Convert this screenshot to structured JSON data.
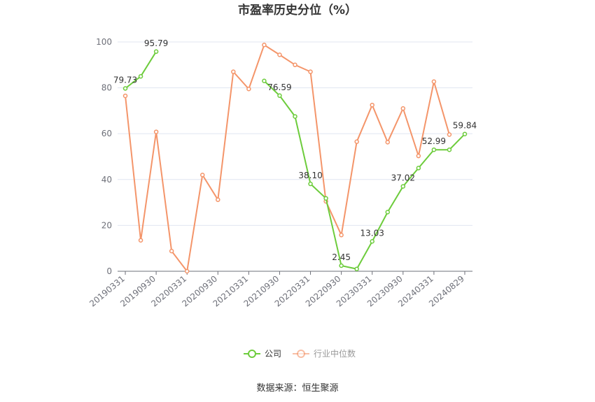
{
  "chart_data": {
    "type": "line",
    "title": "市盈率历史分位（%）",
    "source": "数据来源：恒生聚源",
    "ylim": [
      0,
      100
    ],
    "yticks": [
      0,
      20,
      40,
      60,
      80,
      100
    ],
    "x_tick_labels": [
      "20190331",
      "20190930",
      "20200331",
      "20200930",
      "20210331",
      "20210930",
      "20220331",
      "20220930",
      "20230331",
      "20230930",
      "20240331",
      "20240829"
    ],
    "legend_position": "bottom-center",
    "grid": true,
    "series": [
      {
        "name": "公司",
        "color": "#6dcc3c",
        "values": [
          79.73,
          85.0,
          95.79,
          null,
          null,
          null,
          null,
          null,
          null,
          83.0,
          76.59,
          67.5,
          38.1,
          31.8,
          2.45,
          1.0,
          13.03,
          25.8,
          37.02,
          45.0,
          52.99,
          52.99,
          59.84
        ]
      },
      {
        "name": "行业中位数",
        "color": "#f4956a",
        "values": [
          76.5,
          13.5,
          60.8,
          8.8,
          0.0,
          42.0,
          31.2,
          87.0,
          79.5,
          98.7,
          94.4,
          90.0,
          87.0,
          30.5,
          15.8,
          56.5,
          72.5,
          56.3,
          71.0,
          50.3,
          82.7,
          59.6,
          null
        ]
      }
    ],
    "data_labels": [
      {
        "series": 0,
        "index": 0,
        "text": "79.73"
      },
      {
        "series": 0,
        "index": 2,
        "text": "95.79"
      },
      {
        "series": 0,
        "index": 10,
        "text": "76.59"
      },
      {
        "series": 0,
        "index": 12,
        "text": "38.10"
      },
      {
        "series": 0,
        "index": 14,
        "text": "2.45"
      },
      {
        "series": 0,
        "index": 16,
        "text": "13.03"
      },
      {
        "series": 0,
        "index": 18,
        "text": "37.02"
      },
      {
        "series": 0,
        "index": 20,
        "text": "52.99"
      },
      {
        "series": 0,
        "index": 22,
        "text": "59.84"
      }
    ]
  }
}
